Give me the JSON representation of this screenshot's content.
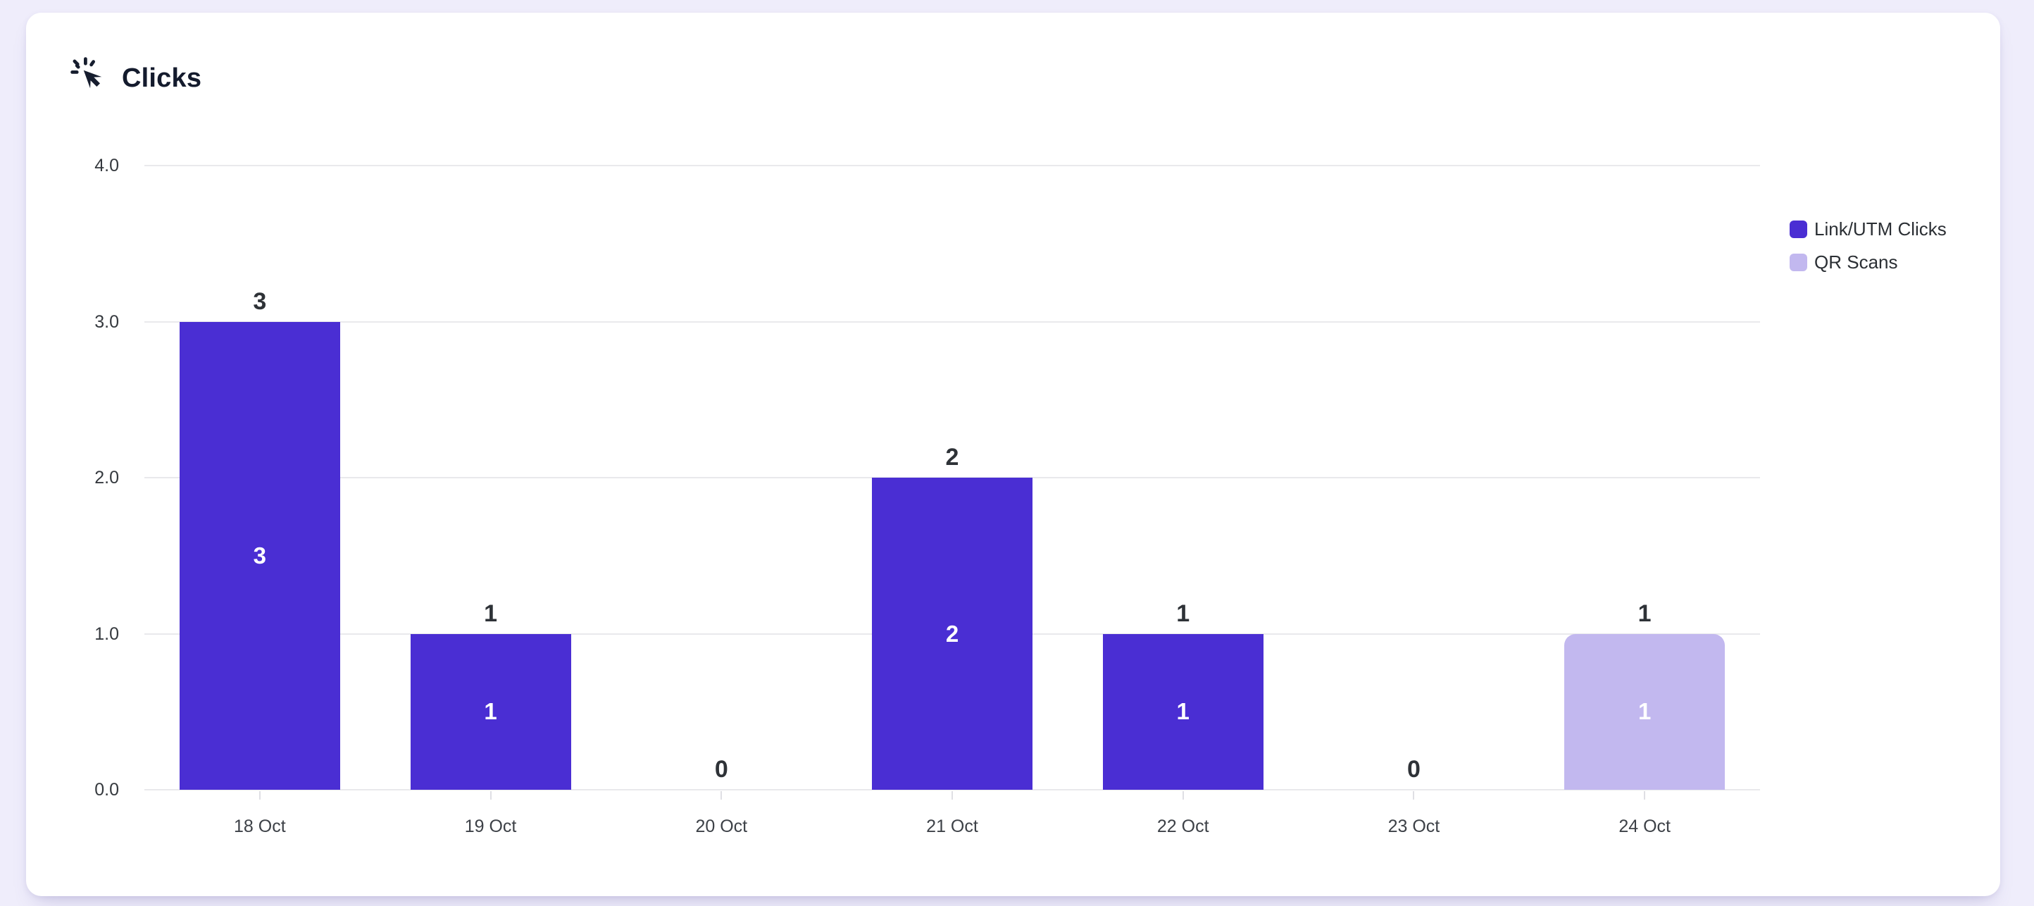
{
  "card": {
    "title": "Clicks"
  },
  "colors": {
    "page_background": "#EFEDFB",
    "card_background": "#FFFFFF",
    "gridline": "#E9E9EC",
    "link_utm_clicks": "#4A2ED3",
    "qr_scans": "#C2B8EF",
    "bar_label_outside": "#2E3237",
    "bar_label_inside": "#FFFFFF",
    "title_text": "#141B2D"
  },
  "chart_data": {
    "type": "bar",
    "stacked": true,
    "title": "Clicks",
    "xlabel": "",
    "ylabel": "",
    "categories": [
      "18 Oct",
      "19 Oct",
      "20 Oct",
      "21 Oct",
      "22 Oct",
      "23 Oct",
      "24 Oct"
    ],
    "series": [
      {
        "name": "Link/UTM Clicks",
        "color": "#4A2ED3",
        "values": [
          3,
          1,
          0,
          2,
          1,
          0,
          0
        ]
      },
      {
        "name": "QR Scans",
        "color": "#C2B8EF",
        "values": [
          0,
          0,
          0,
          0,
          0,
          0,
          1
        ]
      }
    ],
    "totals": [
      3,
      1,
      0,
      2,
      1,
      0,
      1
    ],
    "bar_labels": [
      "3",
      "1",
      "0",
      "2",
      "1",
      "0",
      "1"
    ],
    "ylim": [
      0,
      4
    ],
    "yticks": [
      "0.0",
      "1.0",
      "2.0",
      "3.0",
      "4.0"
    ],
    "grid": true,
    "legend_position": "right"
  }
}
